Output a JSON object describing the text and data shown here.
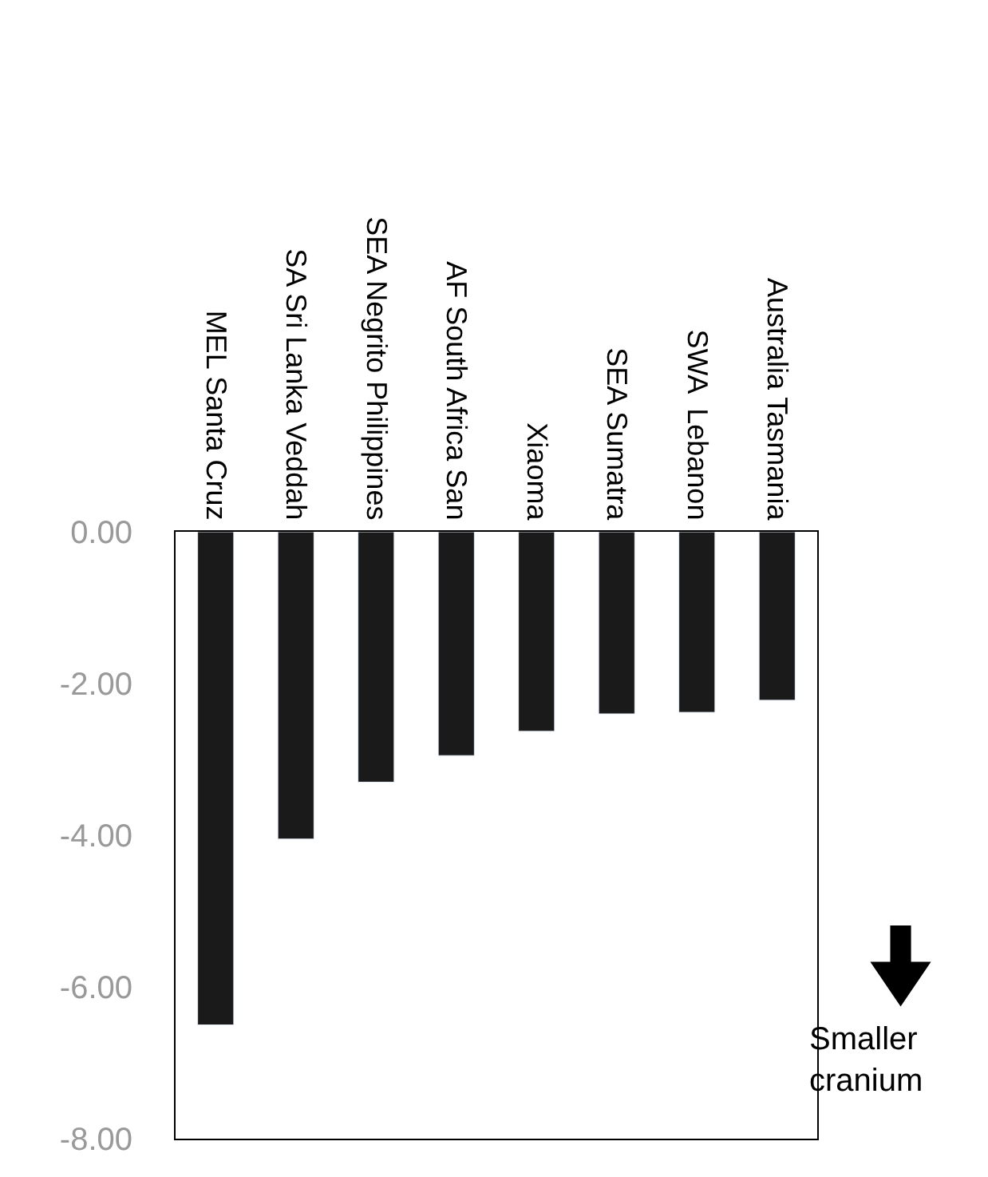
{
  "chart_data": {
    "type": "bar",
    "categories": [
      "MEL Santa Cruz",
      "SA Sri Lanka Veddah",
      "SEA Negrito Philippines",
      "AF South Africa San",
      "Xiaoma",
      "SEA Sumatra",
      "SWA  Lebanon",
      "Australia Tasmania"
    ],
    "values": [
      -6.5,
      -4.05,
      -3.3,
      -2.95,
      -2.63,
      -2.4,
      -2.38,
      -2.22
    ],
    "color": "#1a1a1a",
    "ylim": [
      -8,
      0
    ],
    "yticks": [
      {
        "value": 0,
        "label": "0.00"
      },
      {
        "value": -2,
        "label": "-2.00"
      },
      {
        "value": -4,
        "label": "-4.00"
      },
      {
        "value": -6,
        "label": "-6.00"
      },
      {
        "value": -8,
        "label": "-8.00"
      }
    ],
    "annotations": [
      "Smaller\ncranium"
    ]
  }
}
